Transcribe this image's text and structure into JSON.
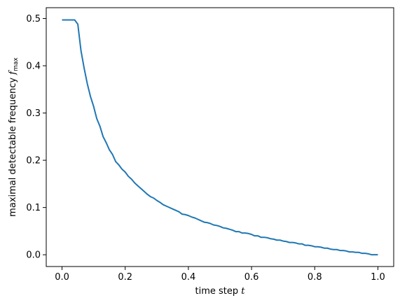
{
  "chart_data": {
    "type": "line",
    "title": "",
    "xlabel": {
      "text": "time step ",
      "var": "t"
    },
    "ylabel": {
      "text": "maximal detectable frequency ",
      "var": "f",
      "sub": "max"
    },
    "xlim": [
      -0.05,
      1.05
    ],
    "ylim": [
      -0.0249,
      0.5229
    ],
    "xticks": [
      0.0,
      0.2,
      0.4,
      0.6,
      0.8,
      1.0
    ],
    "xtick_labels": [
      "0.0",
      "0.2",
      "0.4",
      "0.6",
      "0.8",
      "1.0"
    ],
    "yticks": [
      0.0,
      0.1,
      0.2,
      0.3,
      0.4,
      0.5
    ],
    "ytick_labels": [
      "0.0",
      "0.1",
      "0.2",
      "0.3",
      "0.4",
      "0.5"
    ],
    "grid": false,
    "series": [
      {
        "color": "#1f77b4",
        "points": [
          [
            0.0,
            0.497
          ],
          [
            0.01,
            0.497
          ],
          [
            0.02,
            0.497
          ],
          [
            0.03,
            0.497
          ],
          [
            0.04,
            0.497
          ],
          [
            0.05,
            0.488
          ],
          [
            0.06,
            0.432
          ],
          [
            0.07,
            0.395
          ],
          [
            0.08,
            0.362
          ],
          [
            0.09,
            0.335
          ],
          [
            0.1,
            0.314
          ],
          [
            0.11,
            0.288
          ],
          [
            0.12,
            0.272
          ],
          [
            0.13,
            0.25
          ],
          [
            0.14,
            0.237
          ],
          [
            0.15,
            0.222
          ],
          [
            0.16,
            0.212
          ],
          [
            0.17,
            0.197
          ],
          [
            0.18,
            0.19
          ],
          [
            0.19,
            0.181
          ],
          [
            0.2,
            0.175
          ],
          [
            0.21,
            0.166
          ],
          [
            0.22,
            0.16
          ],
          [
            0.23,
            0.152
          ],
          [
            0.24,
            0.146
          ],
          [
            0.25,
            0.14
          ],
          [
            0.26,
            0.134
          ],
          [
            0.27,
            0.128
          ],
          [
            0.28,
            0.123
          ],
          [
            0.29,
            0.12
          ],
          [
            0.3,
            0.115
          ],
          [
            0.31,
            0.111
          ],
          [
            0.32,
            0.106
          ],
          [
            0.33,
            0.103
          ],
          [
            0.34,
            0.1
          ],
          [
            0.35,
            0.097
          ],
          [
            0.36,
            0.094
          ],
          [
            0.37,
            0.091
          ],
          [
            0.38,
            0.086
          ],
          [
            0.39,
            0.085
          ],
          [
            0.4,
            0.083
          ],
          [
            0.41,
            0.08
          ],
          [
            0.42,
            0.078
          ],
          [
            0.43,
            0.075
          ],
          [
            0.44,
            0.072
          ],
          [
            0.45,
            0.069
          ],
          [
            0.46,
            0.068
          ],
          [
            0.47,
            0.066
          ],
          [
            0.48,
            0.063
          ],
          [
            0.49,
            0.062
          ],
          [
            0.5,
            0.06
          ],
          [
            0.51,
            0.057
          ],
          [
            0.52,
            0.056
          ],
          [
            0.53,
            0.054
          ],
          [
            0.54,
            0.052
          ],
          [
            0.55,
            0.049
          ],
          [
            0.56,
            0.049
          ],
          [
            0.57,
            0.046
          ],
          [
            0.58,
            0.046
          ],
          [
            0.59,
            0.045
          ],
          [
            0.6,
            0.043
          ],
          [
            0.61,
            0.04
          ],
          [
            0.62,
            0.04
          ],
          [
            0.63,
            0.037
          ],
          [
            0.64,
            0.037
          ],
          [
            0.65,
            0.036
          ],
          [
            0.66,
            0.034
          ],
          [
            0.67,
            0.033
          ],
          [
            0.68,
            0.031
          ],
          [
            0.69,
            0.031
          ],
          [
            0.7,
            0.029
          ],
          [
            0.71,
            0.028
          ],
          [
            0.72,
            0.026
          ],
          [
            0.73,
            0.026
          ],
          [
            0.74,
            0.025
          ],
          [
            0.75,
            0.023
          ],
          [
            0.76,
            0.023
          ],
          [
            0.77,
            0.02
          ],
          [
            0.78,
            0.02
          ],
          [
            0.79,
            0.019
          ],
          [
            0.8,
            0.017
          ],
          [
            0.81,
            0.017
          ],
          [
            0.82,
            0.016
          ],
          [
            0.83,
            0.014
          ],
          [
            0.84,
            0.014
          ],
          [
            0.85,
            0.012
          ],
          [
            0.86,
            0.011
          ],
          [
            0.87,
            0.011
          ],
          [
            0.88,
            0.009
          ],
          [
            0.89,
            0.009
          ],
          [
            0.9,
            0.008
          ],
          [
            0.91,
            0.006
          ],
          [
            0.92,
            0.006
          ],
          [
            0.93,
            0.005
          ],
          [
            0.94,
            0.005
          ],
          [
            0.95,
            0.003
          ],
          [
            0.96,
            0.003
          ],
          [
            0.97,
            0.002
          ],
          [
            0.98,
            0.0
          ],
          [
            0.99,
            0.0
          ],
          [
            1.0,
            0.0
          ]
        ]
      }
    ]
  }
}
